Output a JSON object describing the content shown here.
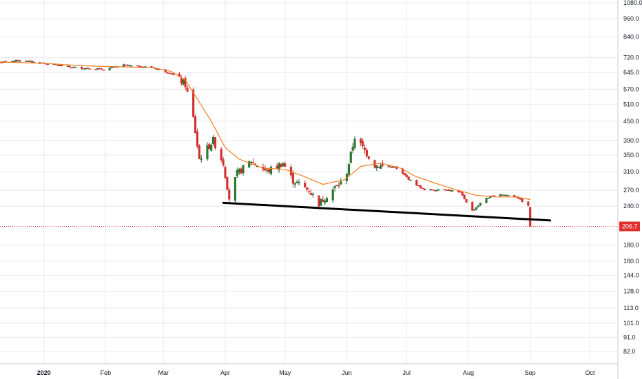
{
  "chart_data": {
    "type": "candlestick",
    "y_scale": "log",
    "y_ticks": [
      "1080.0",
      "960.0",
      "840.0",
      "720.0",
      "645.0",
      "570.0",
      "510.0",
      "450.0",
      "390.0",
      "350.0",
      "310.0",
      "270.0",
      "240.0",
      "180.0",
      "160.0",
      "144.0",
      "128.0",
      "113.0",
      "101.0",
      "91.0",
      "82.0"
    ],
    "y_range": [
      75,
      1100
    ],
    "x_labels": [
      {
        "label": "2020",
        "date": "2020-01-01",
        "bold": true
      },
      {
        "label": "Feb",
        "date": "2020-02-01",
        "bold": false
      },
      {
        "label": "Mar",
        "date": "2020-03-01",
        "bold": false
      },
      {
        "label": "Apr",
        "date": "2020-04-01",
        "bold": false
      },
      {
        "label": "May",
        "date": "2020-05-01",
        "bold": false
      },
      {
        "label": "Jun",
        "date": "2020-06-01",
        "bold": false
      },
      {
        "label": "Jul",
        "date": "2020-07-01",
        "bold": false
      },
      {
        "label": "Aug",
        "date": "2020-08-01",
        "bold": false
      },
      {
        "label": "Sep",
        "date": "2020-09-01",
        "bold": false
      },
      {
        "label": "Oct",
        "date": "2020-10-01",
        "bold": false
      }
    ],
    "x_range": [
      "2019-12-10",
      "2020-10-15"
    ],
    "last_price": {
      "value": 206.7,
      "label": "206.7"
    },
    "key_closes": [
      {
        "date": "2019-12-10",
        "close": 695
      },
      {
        "date": "2019-12-20",
        "close": 705
      },
      {
        "date": "2020-01-01",
        "close": 690
      },
      {
        "date": "2020-01-15",
        "close": 670
      },
      {
        "date": "2020-01-31",
        "close": 660
      },
      {
        "date": "2020-02-10",
        "close": 680
      },
      {
        "date": "2020-02-25",
        "close": 668
      },
      {
        "date": "2020-03-05",
        "close": 640
      },
      {
        "date": "2020-03-12",
        "close": 590
      },
      {
        "date": "2020-03-16",
        "close": 460
      },
      {
        "date": "2020-03-19",
        "close": 340
      },
      {
        "date": "2020-03-26",
        "close": 390
      },
      {
        "date": "2020-03-31",
        "close": 330
      },
      {
        "date": "2020-04-03",
        "close": 255
      },
      {
        "date": "2020-04-07",
        "close": 305
      },
      {
        "date": "2020-04-14",
        "close": 335
      },
      {
        "date": "2020-04-22",
        "close": 310
      },
      {
        "date": "2020-04-30",
        "close": 330
      },
      {
        "date": "2020-05-05",
        "close": 290
      },
      {
        "date": "2020-05-13",
        "close": 270
      },
      {
        "date": "2020-05-18",
        "close": 245
      },
      {
        "date": "2020-05-26",
        "close": 275
      },
      {
        "date": "2020-05-31",
        "close": 290
      },
      {
        "date": "2020-06-05",
        "close": 400
      },
      {
        "date": "2020-06-09",
        "close": 370
      },
      {
        "date": "2020-06-15",
        "close": 325
      },
      {
        "date": "2020-06-25",
        "close": 320
      },
      {
        "date": "2020-07-03",
        "close": 290
      },
      {
        "date": "2020-07-10",
        "close": 270
      },
      {
        "date": "2020-07-20",
        "close": 272
      },
      {
        "date": "2020-07-28",
        "close": 265
      },
      {
        "date": "2020-08-03",
        "close": 232
      },
      {
        "date": "2020-08-10",
        "close": 255
      },
      {
        "date": "2020-08-17",
        "close": 262
      },
      {
        "date": "2020-08-25",
        "close": 258
      },
      {
        "date": "2020-08-31",
        "close": 240
      },
      {
        "date": "2020-09-01",
        "close": 206.7
      }
    ],
    "ma_line": [
      [
        "2019-12-10",
        697
      ],
      [
        "2020-01-01",
        690
      ],
      [
        "2020-01-20",
        678
      ],
      [
        "2020-02-10",
        672
      ],
      [
        "2020-02-25",
        668
      ],
      [
        "2020-03-05",
        650
      ],
      [
        "2020-03-12",
        610
      ],
      [
        "2020-03-18",
        530
      ],
      [
        "2020-03-25",
        450
      ],
      [
        "2020-04-01",
        370
      ],
      [
        "2020-04-08",
        340
      ],
      [
        "2020-04-20",
        318
      ],
      [
        "2020-05-01",
        315
      ],
      [
        "2020-05-10",
        300
      ],
      [
        "2020-05-20",
        282
      ],
      [
        "2020-05-31",
        292
      ],
      [
        "2020-06-08",
        322
      ],
      [
        "2020-06-18",
        330
      ],
      [
        "2020-06-28",
        318
      ],
      [
        "2020-07-05",
        300
      ],
      [
        "2020-07-15",
        285
      ],
      [
        "2020-07-25",
        272
      ],
      [
        "2020-08-05",
        260
      ],
      [
        "2020-08-15",
        257
      ],
      [
        "2020-08-25",
        257
      ],
      [
        "2020-09-01",
        252
      ]
    ],
    "trend_line": [
      [
        "2020-03-31",
        246
      ],
      [
        "2020-09-11",
        216
      ]
    ],
    "colors": {
      "up": "#26a69a",
      "up_dark": "#1b5e20",
      "down": "#d32f2f",
      "ma": "#f47b20",
      "trend": "#000000",
      "grid": "#e7e9ee",
      "price_bg": "#e02e2e",
      "axis": "#131722"
    }
  }
}
